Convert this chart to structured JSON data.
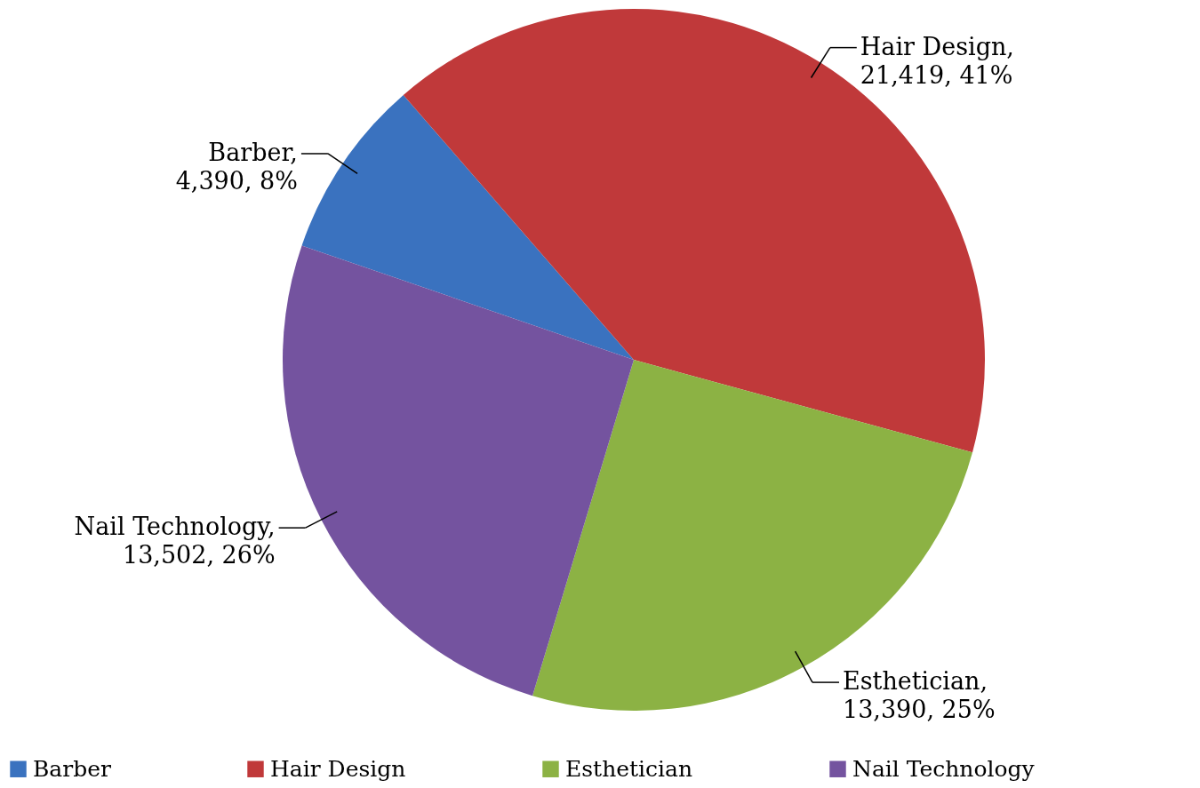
{
  "chart_data": {
    "type": "pie",
    "categories": [
      "Barber",
      "Hair Design",
      "Esthetician",
      "Nail Technology"
    ],
    "values": [
      4390,
      21419,
      13390,
      13502
    ],
    "colors": [
      "#3a72bf",
      "#c0393a",
      "#8cb244",
      "#74539f"
    ],
    "value_labels": [
      "Barber, 4,390, 8%",
      "Hair Design, 21,419, 41%",
      "Esthetician, 13,390, 25%",
      "Nail Technology, 13,502, 26%"
    ],
    "legend": "bottom"
  }
}
